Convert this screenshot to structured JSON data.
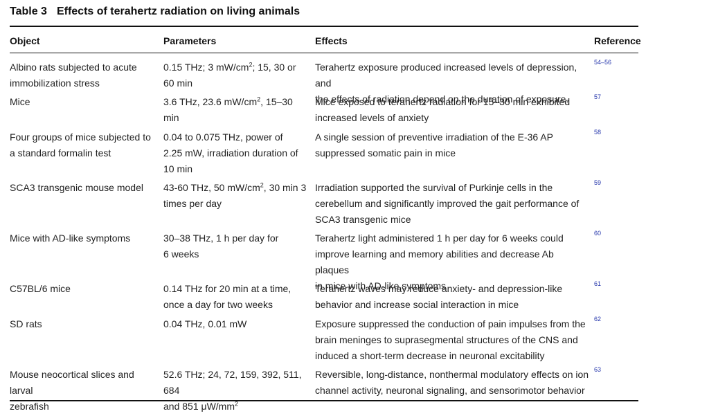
{
  "table": {
    "label": "Table 3",
    "title": "Effects of terahertz radiation on living animals",
    "headers": {
      "object": "Object",
      "parameters": "Parameters",
      "effects": "Effects",
      "reference": "Reference"
    },
    "rows": [
      {
        "object": [
          "Albino rats subjected to acute",
          "immobilization stress"
        ],
        "parameters": [
          [
            "0.15 THz; 3 mW/cm",
            "2",
            "; 15, 30 or"
          ],
          [
            "60 min"
          ]
        ],
        "effects": [
          "Terahertz exposure produced increased levels of depression, and",
          "the effects of radiation depend on the duration of exposure."
        ],
        "reference": "54–56"
      },
      {
        "object": [
          "Mice"
        ],
        "parameters": [
          [
            "3.6 THz, 23.6 mW/cm",
            "2",
            ", 15–30 min"
          ]
        ],
        "effects": [
          "Mice exposed to terahertz radiation for 15–30 min exhibited",
          "increased levels of anxiety"
        ],
        "reference": "57"
      },
      {
        "object": [
          "Four groups of mice subjected to",
          "a standard formalin test"
        ],
        "parameters": [
          [
            "0.04 to 0.075 THz, power of"
          ],
          [
            "2.25 mW, irradiation duration of"
          ],
          [
            "10 min"
          ]
        ],
        "effects": [
          "A single session of preventive irradiation of the E-36 AP",
          "suppressed somatic pain in mice"
        ],
        "reference": "58"
      },
      {
        "object": [
          "SCA3 transgenic mouse model"
        ],
        "parameters": [
          [
            "43-60 THz, 50 mW/cm",
            "2",
            ", 30 min 3"
          ],
          [
            "times per day"
          ]
        ],
        "effects": [
          "Irradiation supported the survival of Purkinje cells in the",
          "cerebellum and significantly improved the gait performance of",
          "SCA3 transgenic mice"
        ],
        "reference": "59"
      },
      {
        "object": [
          "Mice with AD-like symptoms"
        ],
        "parameters": [
          [
            "30–38 THz, 1 h per day for"
          ],
          [
            "6 weeks"
          ]
        ],
        "effects": [
          "Terahertz light administered 1 h per day for 6 weeks could",
          "improve learning and memory abilities and decrease Ab plaques",
          "in mice with AD-like symptoms"
        ],
        "reference": "60"
      },
      {
        "object": [
          "C57BL/6 mice"
        ],
        "parameters": [
          [
            "0.14 THz for 20 min at a time,"
          ],
          [
            "once a day for two weeks"
          ]
        ],
        "effects": [
          "Terahertz waves may reduce anxiety- and depression-like",
          "behavior and increase social interaction in mice"
        ],
        "reference": "61"
      },
      {
        "object": [
          "SD rats"
        ],
        "parameters": [
          [
            "0.04 THz, 0.01 mW"
          ]
        ],
        "effects": [
          "Exposure suppressed the conduction of pain impulses from the",
          "brain meninges to suprasegmental structures of the CNS and",
          "induced a short-term decrease in neuronal excitability"
        ],
        "reference": "62"
      },
      {
        "object": [
          "Mouse neocortical slices and larval",
          "zebrafish"
        ],
        "parameters": [
          [
            "52.6 THz; 24, 72, 159, 392, 511, 684"
          ],
          [
            "and 851 μW/mm",
            "2",
            ""
          ]
        ],
        "effects": [
          "Reversible, long-distance, nonthermal modulatory effects on ion",
          "channel activity, neuronal signaling, and sensorimotor behavior"
        ],
        "reference": "63"
      }
    ]
  }
}
